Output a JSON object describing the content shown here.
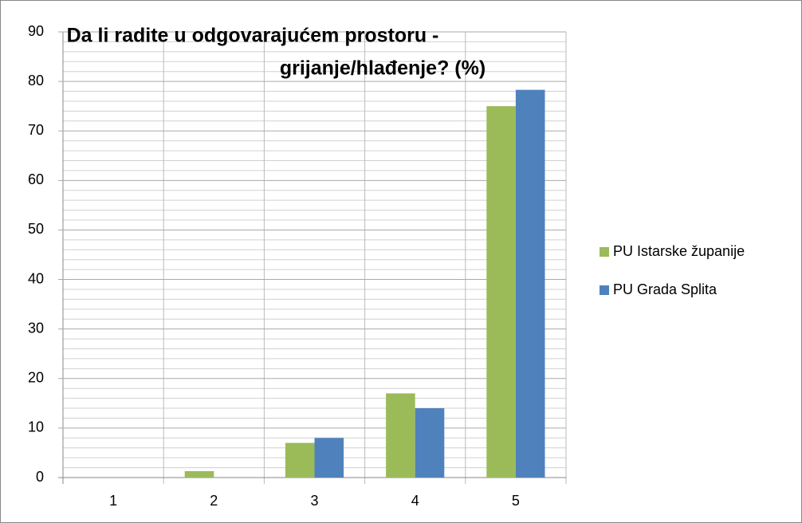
{
  "chart_data": {
    "type": "bar",
    "title": [
      "Da li radite u odgovarajućem prostoru -",
      "grijanje/hlađenje? (%)"
    ],
    "categories": [
      "1",
      "2",
      "3",
      "4",
      "5"
    ],
    "series": [
      {
        "name": "PU Istarske županije",
        "color": "#9bbb59",
        "values": [
          0,
          1.3,
          7,
          17,
          75
        ]
      },
      {
        "name": "PU Grada Splita",
        "color": "#4f81bd",
        "values": [
          0,
          0,
          8,
          14,
          78.3
        ]
      }
    ],
    "ylim": [
      0,
      90
    ],
    "yticks": [
      0,
      10,
      20,
      30,
      40,
      50,
      60,
      70,
      80,
      90
    ],
    "grid": true,
    "minor_grid": true,
    "legend": "right"
  }
}
